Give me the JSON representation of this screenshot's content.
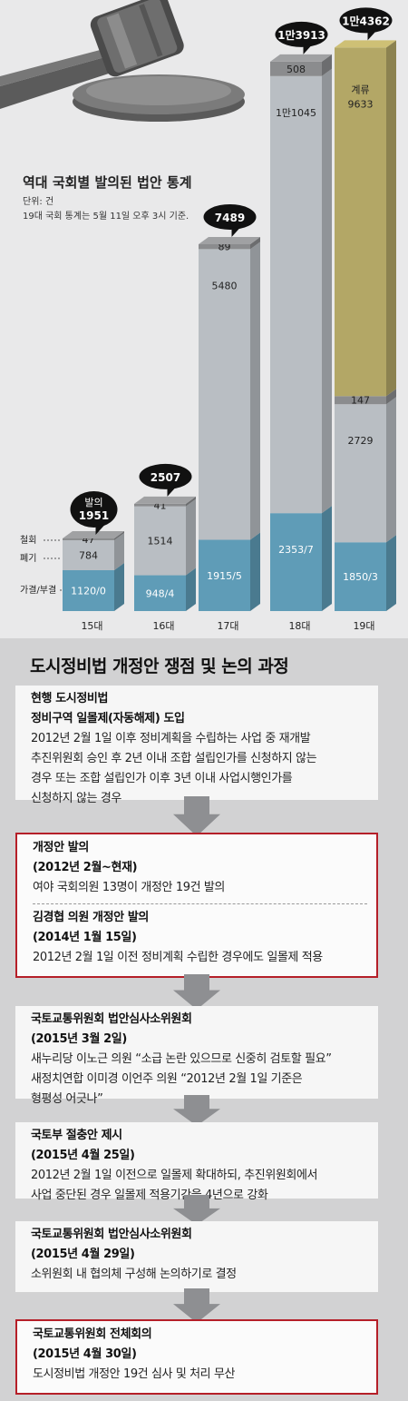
{
  "chart_data": {
    "type": "bar",
    "title": "역대 국회별 발의된 법안 통계",
    "unit": "단위: 건",
    "note": "19대 국회 통계는 5월 11일 오후 3시 기준.",
    "categories": [
      "15대",
      "16대",
      "17대",
      "18대",
      "19대"
    ],
    "totals": [
      "1951",
      "2507",
      "7489",
      "1만3913",
      "1만4362"
    ],
    "total_values": [
      1951,
      2507,
      7489,
      13913,
      14362
    ],
    "total_prefix_15": "발의",
    "segment_labels": [
      "철회",
      "폐기",
      "가결/부결"
    ],
    "series": [
      {
        "name": "가결/부결",
        "values": [
          1120,
          948,
          1915,
          2353,
          1850
        ],
        "labels": [
          "1120/0",
          "948/4",
          "1915/5",
          "2353/7",
          "1850/3"
        ],
        "color": "#5f9cb7"
      },
      {
        "name": "폐기",
        "values": [
          784,
          1514,
          5480,
          11045,
          2729
        ],
        "labels": [
          "784",
          "1514",
          "5480",
          "1만1045",
          "2729"
        ],
        "color": "#b9bec3"
      },
      {
        "name": "철회",
        "values": [
          47,
          41,
          89,
          508,
          147
        ],
        "labels": [
          "47",
          "41",
          "89",
          "508",
          "147"
        ],
        "color": "#8b8c8e"
      },
      {
        "name": "계류",
        "values": [
          0,
          0,
          0,
          0,
          9633
        ],
        "labels": [
          "",
          "",
          "",
          "",
          "9633"
        ],
        "color": "#b3a766"
      }
    ],
    "pending_label": "계류"
  },
  "process": {
    "title": "도시정비법 개정안 쟁점 및 논의 과정",
    "boxes": [
      {
        "highlight": false,
        "groups": [
          {
            "lines": [
              {
                "text": "현행 도시정비법",
                "bold": true
              },
              {
                "text": "정비구역 일몰제(자동해제) 도입",
                "bold": true
              },
              {
                "text": "2012년 2월 1일 이후 정비계획을 수립하는 사업 중 재개발",
                "bold": false
              },
              {
                "text": "추진위원회 승인 후 2년 이내 조합 설립인가를 신청하지 않는",
                "bold": false
              },
              {
                "text": "경우 또는 조합 설립인가 이후 3년 이내 사업시행인가를",
                "bold": false
              },
              {
                "text": "신청하지 않는 경우",
                "bold": false
              }
            ]
          }
        ]
      },
      {
        "highlight": true,
        "groups": [
          {
            "lines": [
              {
                "text": "개정안 발의",
                "bold": true
              },
              {
                "text": "(2012년 2월~현재)",
                "bold": true
              },
              {
                "text": "여야 국회의원 13명이 개정안 19건 발의",
                "bold": false
              }
            ]
          },
          {
            "lines": [
              {
                "text": "김경협 의원 개정안 발의",
                "bold": true
              },
              {
                "text": "(2014년 1월 15일)",
                "bold": true
              },
              {
                "text": "2012년 2월 1일 이전 정비계획 수립한 경우에도 일몰제 적용",
                "bold": false
              }
            ]
          }
        ]
      },
      {
        "highlight": false,
        "groups": [
          {
            "lines": [
              {
                "text": "국토교통위원회 법안심사소위원회",
                "bold": true
              },
              {
                "text": "(2015년 3월 2일)",
                "bold": true
              },
              {
                "text": "새누리당 이노근 의원 “소급 논란 있으므로 신중히 검토할 필요”",
                "bold": false
              },
              {
                "text": "새정치연합 이미경 이언주 의원 “2012년 2월 1일 기준은",
                "bold": false
              },
              {
                "text": "형평성 어긋나”",
                "bold": false
              }
            ]
          }
        ]
      },
      {
        "highlight": false,
        "groups": [
          {
            "lines": [
              {
                "text": "국토부 절충안 제시",
                "bold": true
              },
              {
                "text": "(2015년 4월 25일)",
                "bold": true
              },
              {
                "text": "2012년 2월 1일 이전으로 일몰제 확대하되, 추진위원회에서",
                "bold": false
              },
              {
                "text": "사업 중단된 경우 일몰제 적용기간을 4년으로 강화",
                "bold": false
              }
            ]
          }
        ]
      },
      {
        "highlight": false,
        "groups": [
          {
            "lines": [
              {
                "text": "국토교통위원회 법안심사소위원회",
                "bold": true
              },
              {
                "text": "(2015년 4월 29일)",
                "bold": true
              },
              {
                "text": "소위원회 내 협의체 구성해 논의하기로 결정",
                "bold": false
              }
            ]
          }
        ]
      },
      {
        "highlight": true,
        "groups": [
          {
            "lines": [
              {
                "text": "국토교통위원회 전체회의",
                "bold": true
              },
              {
                "text": "(2015년 4월 30일)",
                "bold": true
              },
              {
                "text": "도시정비법 개정안 19건 심사 및 처리 무산",
                "bold": false
              }
            ]
          }
        ]
      }
    ]
  }
}
